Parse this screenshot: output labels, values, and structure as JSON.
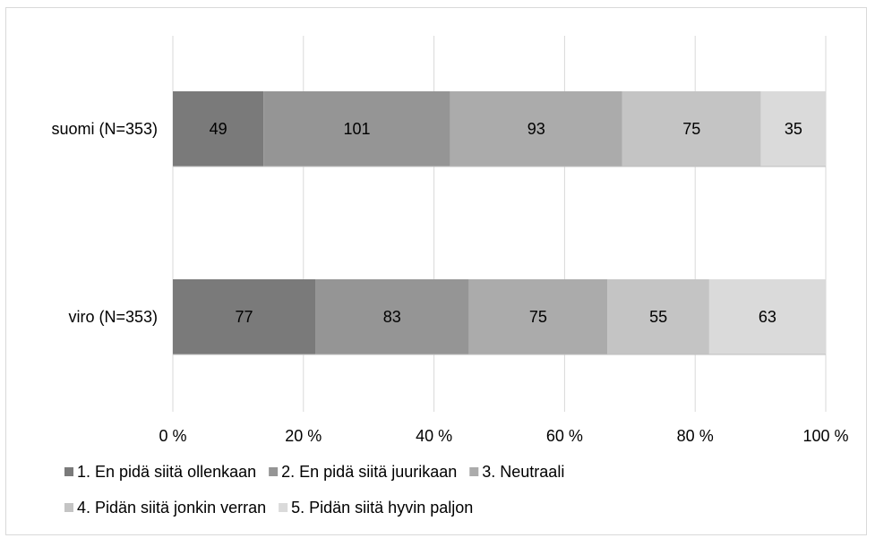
{
  "chart_data": {
    "type": "bar",
    "orientation": "horizontal",
    "stacking": "percent",
    "categories": [
      "suomi (N=353)",
      "viro (N=353)"
    ],
    "series": [
      {
        "name": "1. En pidä siitä ollenkaan",
        "color": "#7a7a7a",
        "values": [
          49,
          77
        ]
      },
      {
        "name": "2. En pidä siitä juurikaan",
        "color": "#959595",
        "values": [
          101,
          83
        ]
      },
      {
        "name": "3. Neutraali",
        "color": "#ababab",
        "values": [
          93,
          75
        ]
      },
      {
        "name": "4. Pidän siitä jonkin verran",
        "color": "#c4c4c4",
        "values": [
          75,
          55
        ]
      },
      {
        "name": "5. Pidän siitä hyvin paljon",
        "color": "#dadada",
        "values": [
          35,
          63
        ]
      }
    ],
    "x_ticks": [
      "0 %",
      "20 %",
      "40 %",
      "60 %",
      "80 %",
      "100 %"
    ],
    "xlim": [
      0,
      100
    ],
    "grid": true,
    "legend_position": "bottom"
  }
}
